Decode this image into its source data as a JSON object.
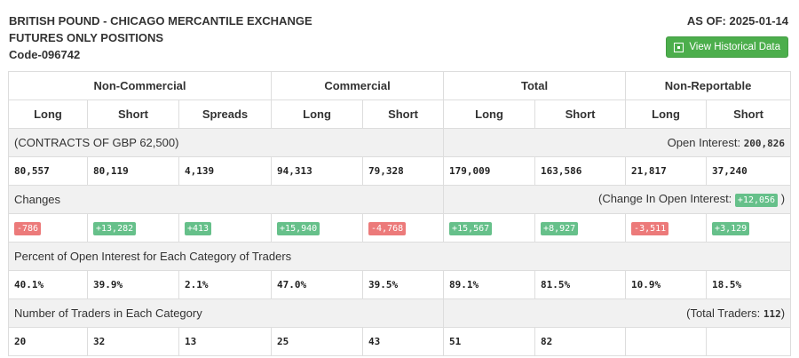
{
  "header": {
    "title1": "BRITISH POUND - CHICAGO MERCANTILE EXCHANGE",
    "title2": "FUTURES ONLY POSITIONS",
    "code": "Code-096742",
    "as_of": "AS OF: 2025-01-14",
    "button": "View Historical Data",
    "button_icon": "calendar-icon"
  },
  "groups": [
    "Non-Commercial",
    "Commercial",
    "Total",
    "Non-Reportable"
  ],
  "columns": [
    "Long",
    "Short",
    "Spreads",
    "Long",
    "Short",
    "Long",
    "Short",
    "Long",
    "Short"
  ],
  "contracts_label": "(CONTRACTS OF GBP 62,500)",
  "open_interest_label": "Open Interest:",
  "open_interest": "200,826",
  "positions": [
    "80,557",
    "80,119",
    "4,139",
    "94,313",
    "79,328",
    "179,009",
    "163,586",
    "21,817",
    "37,240"
  ],
  "changes_label": "Changes",
  "change_oi_label": "(Change In Open Interest:",
  "change_oi": "+12,056",
  "change_oi_close": ")",
  "changes": [
    "-786",
    "+13,282",
    "+413",
    "+15,940",
    "-4,768",
    "+15,567",
    "+8,927",
    "-3,511",
    "+3,129"
  ],
  "percent_label": "Percent of Open Interest for Each Category of Traders",
  "percents": [
    "40.1%",
    "39.9%",
    "2.1%",
    "47.0%",
    "39.5%",
    "89.1%",
    "81.5%",
    "10.9%",
    "18.5%"
  ],
  "traders_label": "Number of Traders in Each Category",
  "total_traders_label": "(Total Traders:",
  "total_traders": "112",
  "total_traders_close": ")",
  "traders": [
    "20",
    "32",
    "13",
    "25",
    "43",
    "51",
    "82",
    "",
    ""
  ],
  "colors": {
    "positive": "#66c08a",
    "negative": "#ec7a7a",
    "button": "#4cae4c"
  }
}
